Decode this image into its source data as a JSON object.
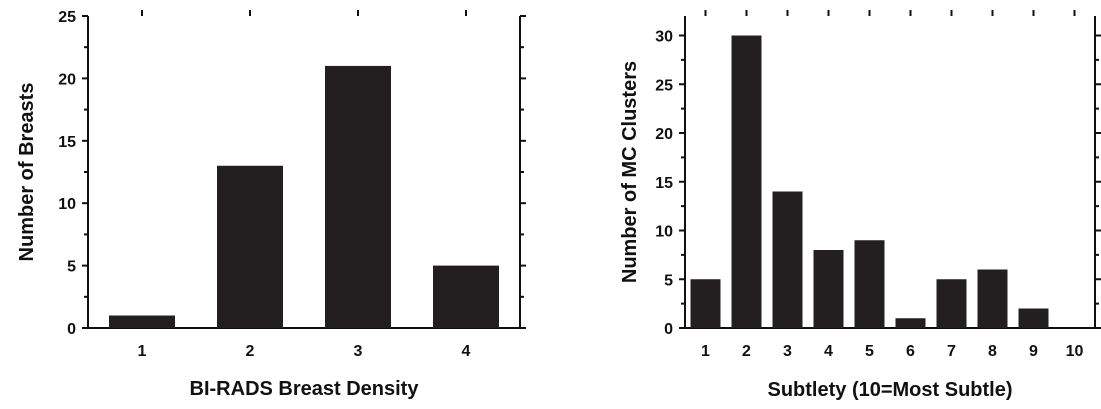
{
  "chart_data": [
    {
      "type": "bar",
      "title": "",
      "xlabel": "BI-RADS Breast Density",
      "ylabel": "Number of Breasts",
      "categories": [
        "1",
        "2",
        "3",
        "4"
      ],
      "values": [
        1,
        13,
        21,
        5
      ],
      "ylim": [
        0,
        25
      ],
      "yticks": [
        "0",
        "5",
        "10",
        "15",
        "20",
        "25"
      ],
      "grid": false,
      "legend": "none"
    },
    {
      "type": "bar",
      "title": "",
      "xlabel": "Subtlety (10=Most Subtle)",
      "ylabel": "Number of MC Clusters",
      "categories": [
        "1",
        "2",
        "3",
        "4",
        "5",
        "6",
        "7",
        "8",
        "9",
        "10"
      ],
      "values": [
        5,
        30,
        14,
        8,
        9,
        1,
        5,
        6,
        2,
        0
      ],
      "ylim": [
        0,
        32
      ],
      "yticks": [
        "0",
        "5",
        "10",
        "15",
        "20",
        "25",
        "30"
      ],
      "grid": false,
      "legend": "none"
    }
  ]
}
